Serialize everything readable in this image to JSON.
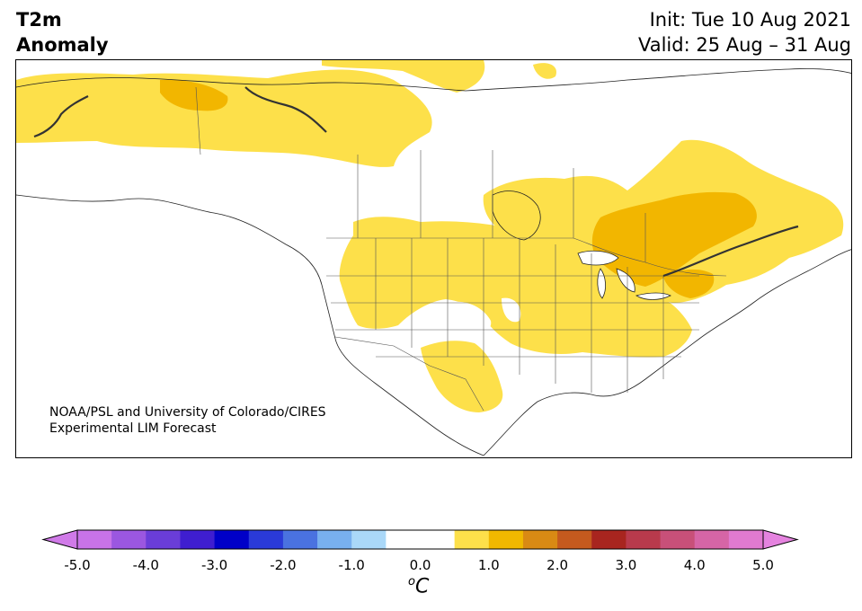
{
  "header": {
    "title_line1": "T2m",
    "title_line2": "Anomaly",
    "init": "Init: Tue 10 Aug 2021",
    "valid": "Valid: 25 Aug – 31 Aug"
  },
  "map": {
    "region": "North America",
    "credit_line1": "NOAA/PSL and University of Colorado/CIRES",
    "credit_line2": "Experimental LIM Forecast"
  },
  "colorbar": {
    "unit_base": "C",
    "unit_sup": "o",
    "ticks": [
      "-5.0",
      "-4.0",
      "-3.0",
      "-2.0",
      "-1.0",
      "0.0",
      "1.0",
      "2.0",
      "3.0",
      "4.0",
      "5.0"
    ],
    "colors": [
      "#c873e8",
      "#9b57e0",
      "#6a3dd8",
      "#3f1ed0",
      "#0000c8",
      "#2a3ad8",
      "#4a72e0",
      "#78b0ef",
      "#aad8f8",
      "#ffffff",
      "#ffffff",
      "#fde04a",
      "#f0b800",
      "#d98a14",
      "#c55a1e",
      "#a8251f",
      "#b83a4c",
      "#c85079",
      "#d665a6",
      "#e07ad0"
    ],
    "under_color": "#d07ae8",
    "over_color": "#e583df",
    "levels_labels": {
      "yellow": "0.5 to 1.0",
      "orange": "1.0 to 1.5"
    }
  },
  "colors": {
    "anomaly_light": "#fde04a",
    "anomaly_medium": "#f2b600"
  }
}
